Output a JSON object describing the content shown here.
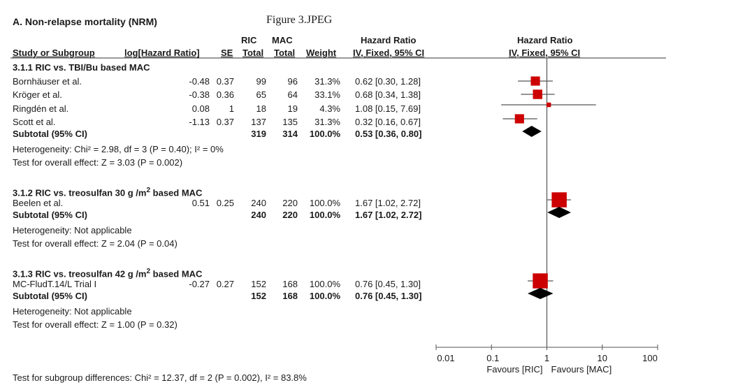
{
  "panel_title": "A. Non-relapse mortality (NRM)",
  "figure_label": "Figure 3.JPEG",
  "header": {
    "ric": "RIC",
    "mac": "MAC",
    "hazard_ratio": "Hazard Ratio",
    "hazard_ratio_plot": "Hazard Ratio",
    "study": "Study or Subgroup",
    "loghr": "log[Hazard Ratio]",
    "se": "SE",
    "ric_total": "Total",
    "mac_total": "Total",
    "weight": "Weight",
    "method": "IV, Fixed, 95% CI",
    "method_plot": "IV, Fixed, 95% CI"
  },
  "groups": [
    {
      "title": "3.1.1 RIC vs. TBI/Bu based MAC",
      "title_sup": "",
      "title_suffix": "",
      "studies": [
        {
          "name": "Bornhäuser et al.",
          "loghr": "-0.48",
          "se": "0.37",
          "ric_total": "99",
          "mac_total": "96",
          "weight": "31.3%",
          "ci_text": "0.62 [0.30, 1.28]",
          "hr": 0.62,
          "lo": 0.3,
          "hi": 1.28,
          "w": 31.3
        },
        {
          "name": "Kröger et al.",
          "loghr": "-0.38",
          "se": "0.36",
          "ric_total": "65",
          "mac_total": "64",
          "weight": "33.1%",
          "ci_text": "0.68 [0.34, 1.38]",
          "hr": 0.68,
          "lo": 0.34,
          "hi": 1.38,
          "w": 33.1
        },
        {
          "name": "Ringdén et al.",
          "loghr": "0.08",
          "se": "1",
          "ric_total": "18",
          "mac_total": "19",
          "weight": "4.3%",
          "ci_text": "1.08 [0.15, 7.69]",
          "hr": 1.08,
          "lo": 0.15,
          "hi": 7.69,
          "w": 4.3
        },
        {
          "name": "Scott et al.",
          "loghr": "-1.13",
          "se": "0.37",
          "ric_total": "137",
          "mac_total": "135",
          "weight": "31.3%",
          "ci_text": "0.32 [0.16, 0.67]",
          "hr": 0.32,
          "lo": 0.16,
          "hi": 0.67,
          "w": 31.3
        }
      ],
      "subtotal": {
        "label": "Subtotal (95% CI)",
        "ric_total": "319",
        "mac_total": "314",
        "weight": "100.0%",
        "ci_text": "0.53 [0.36, 0.80]",
        "hr": 0.53,
        "lo": 0.36,
        "hi": 0.8
      },
      "heterogeneity": "Heterogeneity: Chi² = 2.98, df = 3 (P = 0.40); I² = 0%",
      "overall": "Test for overall effect: Z = 3.03 (P = 0.002)"
    },
    {
      "title": "3.1.2 RIC vs. treosulfan 30 g /m",
      "title_sup": "2",
      "title_suffix": " based MAC",
      "studies": [
        {
          "name": "Beelen et al.",
          "loghr": "0.51",
          "se": "0.25",
          "ric_total": "240",
          "mac_total": "220",
          "weight": "100.0%",
          "ci_text": "1.67 [1.02, 2.72]",
          "hr": 1.67,
          "lo": 1.02,
          "hi": 2.72,
          "w": 100.0
        }
      ],
      "subtotal": {
        "label": "Subtotal (95% CI)",
        "ric_total": "240",
        "mac_total": "220",
        "weight": "100.0%",
        "ci_text": "1.67 [1.02, 2.72]",
        "hr": 1.67,
        "lo": 1.02,
        "hi": 2.72
      },
      "heterogeneity": "Heterogeneity: Not applicable",
      "overall": "Test for overall effect: Z = 2.04 (P = 0.04)"
    },
    {
      "title": "3.1.3 RIC vs. treosulfan 42 g /m",
      "title_sup": "2",
      "title_suffix": " based MAC",
      "studies": [
        {
          "name": "MC-FludT.14/L Trial I",
          "loghr": "-0.27",
          "se": "0.27",
          "ric_total": "152",
          "mac_total": "168",
          "weight": "100.0%",
          "ci_text": "0.76 [0.45, 1.30]",
          "hr": 0.76,
          "lo": 0.45,
          "hi": 1.3,
          "w": 100.0
        }
      ],
      "subtotal": {
        "label": "Subtotal (95% CI)",
        "ric_total": "152",
        "mac_total": "168",
        "weight": "100.0%",
        "ci_text": "0.76 [0.45, 1.30]",
        "hr": 0.76,
        "lo": 0.45,
        "hi": 1.3
      },
      "heterogeneity": "Heterogeneity: Not applicable",
      "overall": "Test for overall effect: Z = 1.00 (P = 0.32)"
    }
  ],
  "subgroup_test": "Test for subgroup differences: Chi² = 12.37, df = 2 (P = 0.002), I² = 83.8%",
  "chart_data": {
    "type": "scatter",
    "subtype": "forest-plot",
    "title": "Hazard Ratio",
    "x_scale": "log",
    "xlim": [
      0.01,
      100
    ],
    "x_ticks": [
      "0.01",
      "0.1",
      "1",
      "10",
      "100"
    ],
    "reference_line": 1,
    "favours_left": "Favours [RIC]",
    "favours_right": "Favours [MAC]",
    "marker_color": "#cc0000",
    "diamond_color": "#000000",
    "points": [
      {
        "study": "Bornhäuser et al.",
        "hr": 0.62,
        "lo": 0.3,
        "hi": 1.28
      },
      {
        "study": "Kröger et al.",
        "hr": 0.68,
        "lo": 0.34,
        "hi": 1.38
      },
      {
        "study": "Ringdén et al.",
        "hr": 1.08,
        "lo": 0.15,
        "hi": 7.69
      },
      {
        "study": "Scott et al.",
        "hr": 0.32,
        "lo": 0.16,
        "hi": 0.67
      },
      {
        "study": "Beelen et al.",
        "hr": 1.67,
        "lo": 1.02,
        "hi": 2.72
      },
      {
        "study": "MC-FludT.14/L Trial I",
        "hr": 0.76,
        "lo": 0.45,
        "hi": 1.3
      }
    ],
    "subtotals": [
      {
        "group": "3.1.1",
        "hr": 0.53,
        "lo": 0.36,
        "hi": 0.8
      },
      {
        "group": "3.1.2",
        "hr": 1.67,
        "lo": 1.02,
        "hi": 2.72
      },
      {
        "group": "3.1.3",
        "hr": 0.76,
        "lo": 0.45,
        "hi": 1.3
      }
    ]
  }
}
